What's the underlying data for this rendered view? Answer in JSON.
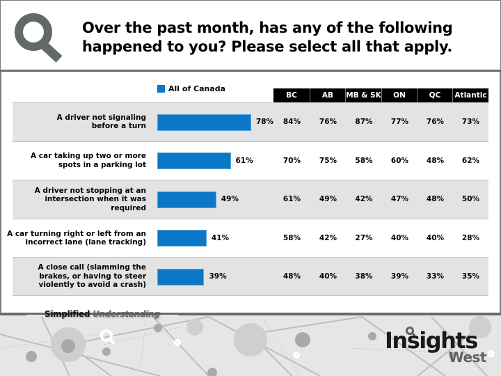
{
  "header": {
    "title_line1": "Over the past month, has any of the following",
    "title_line2": "happened to you? Please select all that apply.",
    "logo_icon": "magnifier-q-icon"
  },
  "colors": {
    "bar": "#0a78c6",
    "row_shade": "#e3e3e3",
    "header_cell": "#000000",
    "logo": "#636966"
  },
  "chart_data": {
    "type": "bar",
    "orientation": "horizontal",
    "title": "Over the past month, has any of the following happened to you? Please select all that apply.",
    "legend": [
      "All of Canada"
    ],
    "legend_position": "top",
    "categories": [
      "A driver not signaling before a turn",
      "A car taking up two or more spots in a parking lot",
      "A driver not stopping at an intersection when it was required",
      "A car turning right or left from an incorrect lane (lane tracking)",
      "A close call (slamming the brakes, or having to steer violently to avoid a crash)"
    ],
    "category_lines": [
      [
        "A driver not signaling",
        "before a turn"
      ],
      [
        "A car taking up two or more",
        "spots in a parking lot"
      ],
      [
        "A driver not stopping at an",
        "intersection when it was",
        "required"
      ],
      [
        "A car turning right or left from an",
        "incorrect lane (lane tracking)"
      ],
      [
        "A close call (slamming the",
        "brakes, or having to steer",
        "violently to avoid a crash)"
      ]
    ],
    "series": [
      {
        "name": "All of Canada",
        "values": [
          78,
          61,
          49,
          41,
          39
        ],
        "labels": [
          "78%",
          "61%",
          "49%",
          "41%",
          "39%"
        ]
      }
    ],
    "xlim": [
      0,
      100
    ],
    "unit": "%",
    "table": {
      "columns": [
        "BC",
        "AB",
        "MB & SK",
        "ON",
        "QC",
        "Atlantic"
      ],
      "rows": [
        [
          "84%",
          "76%",
          "87%",
          "77%",
          "76%",
          "73%"
        ],
        [
          "70%",
          "75%",
          "58%",
          "60%",
          "48%",
          "62%"
        ],
        [
          "61%",
          "49%",
          "42%",
          "47%",
          "48%",
          "50%"
        ],
        [
          "58%",
          "42%",
          "27%",
          "40%",
          "40%",
          "28%"
        ],
        [
          "48%",
          "40%",
          "38%",
          "39%",
          "33%",
          "35%"
        ]
      ]
    }
  },
  "footer": {
    "tagline_part1": "Simplified",
    "tagline_part2": "Understanding",
    "brand_line1": "Insights",
    "brand_line2": "West"
  }
}
